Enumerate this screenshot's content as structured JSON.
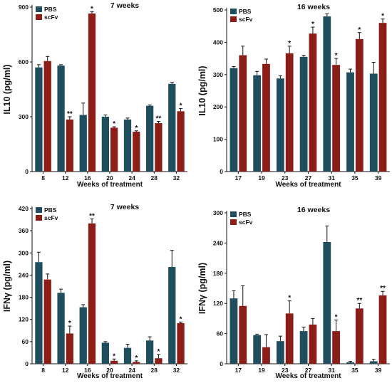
{
  "colors": {
    "series_1": "#1f4e5f",
    "series_2": "#8b1f18",
    "axis": "#111111",
    "error_bar": "#111111"
  },
  "chart_data": [
    {
      "type": "bar",
      "title": "7 weeks",
      "xlabel": "Weeks of treatment",
      "ylabel": "IL10 (pg/ml)",
      "categories": [
        "8",
        "12",
        "16",
        "20",
        "24",
        "28",
        "32"
      ],
      "ylim": [
        0,
        900
      ],
      "yticks": [
        "0",
        "300",
        "600",
        "900"
      ],
      "legend_position": "top-left",
      "series": [
        {
          "name": "PBS",
          "values": [
            570,
            580,
            310,
            300,
            285,
            360,
            480
          ],
          "errors": [
            15,
            5,
            65,
            10,
            8,
            5,
            8
          ]
        },
        {
          "name": "scFv",
          "values": [
            605,
            285,
            865,
            240,
            218,
            265,
            330
          ],
          "errors": [
            25,
            15,
            10,
            5,
            5,
            10,
            15
          ]
        }
      ],
      "significance": [
        "",
        "**",
        "*",
        "*",
        "*",
        "**",
        "*"
      ]
    },
    {
      "type": "bar",
      "title": "16 weeks",
      "xlabel": "Weeks of treatment",
      "ylabel": "IL10 (pg/ml)",
      "categories": [
        "17",
        "19",
        "23",
        "27",
        "31",
        "35",
        "39"
      ],
      "ylim": [
        0,
        500
      ],
      "yticks": [
        "0",
        "100",
        "200",
        "300",
        "400",
        "500"
      ],
      "legend_position": "top-left",
      "series": [
        {
          "name": "PBS",
          "values": [
            320,
            298,
            288,
            355,
            480,
            307,
            303
          ],
          "errors": [
            5,
            12,
            8,
            5,
            8,
            10,
            35
          ]
        },
        {
          "name": "scFv",
          "values": [
            360,
            333,
            366,
            427,
            330,
            410,
            460
          ],
          "errors": [
            28,
            15,
            22,
            20,
            20,
            20,
            12
          ]
        }
      ],
      "significance": [
        "",
        "",
        "*",
        "*",
        "*",
        "*",
        "*"
      ]
    },
    {
      "type": "bar",
      "title": "7 weeks",
      "xlabel": "Weeks of treatment",
      "ylabel": "IFNγ (pg/ml)",
      "categories": [
        "8",
        "12",
        "16",
        "20",
        "24",
        "28",
        "32"
      ],
      "ylim": [
        0,
        420
      ],
      "yticks": [
        "0",
        "60",
        "120",
        "180",
        "240",
        "300",
        "360",
        "420"
      ],
      "legend_position": "top-left",
      "series": [
        {
          "name": "PBS",
          "values": [
            275,
            192,
            153,
            57,
            43,
            63,
            262
          ],
          "errors": [
            27,
            10,
            7,
            3,
            10,
            10,
            45
          ]
        },
        {
          "name": "scFv",
          "values": [
            228,
            82,
            380,
            8,
            5,
            15,
            110
          ],
          "errors": [
            15,
            20,
            12,
            5,
            3,
            10,
            3
          ]
        }
      ],
      "significance": [
        "",
        "*",
        "**",
        "*",
        "*",
        "*",
        "*"
      ]
    },
    {
      "type": "bar",
      "title": "16 weeks",
      "xlabel": "Weeks of treatment",
      "ylabel": "IFNγ (pg/ml)",
      "categories": [
        "17",
        "19",
        "23",
        "27",
        "31",
        "35",
        "39"
      ],
      "ylim": [
        0,
        300
      ],
      "yticks": [
        "0",
        "60",
        "120",
        "180",
        "240",
        "300"
      ],
      "legend_position": "top-left",
      "series": [
        {
          "name": "PBS",
          "values": [
            130,
            57,
            45,
            65,
            242,
            3,
            5
          ],
          "errors": [
            15,
            2,
            10,
            8,
            32,
            2,
            4
          ]
        },
        {
          "name": "scFv",
          "values": [
            115,
            33,
            100,
            78,
            65,
            110,
            136
          ],
          "errors": [
            40,
            25,
            25,
            12,
            22,
            10,
            8
          ]
        }
      ],
      "significance": [
        "",
        "",
        "*",
        "",
        "*",
        "**",
        "**"
      ]
    }
  ]
}
